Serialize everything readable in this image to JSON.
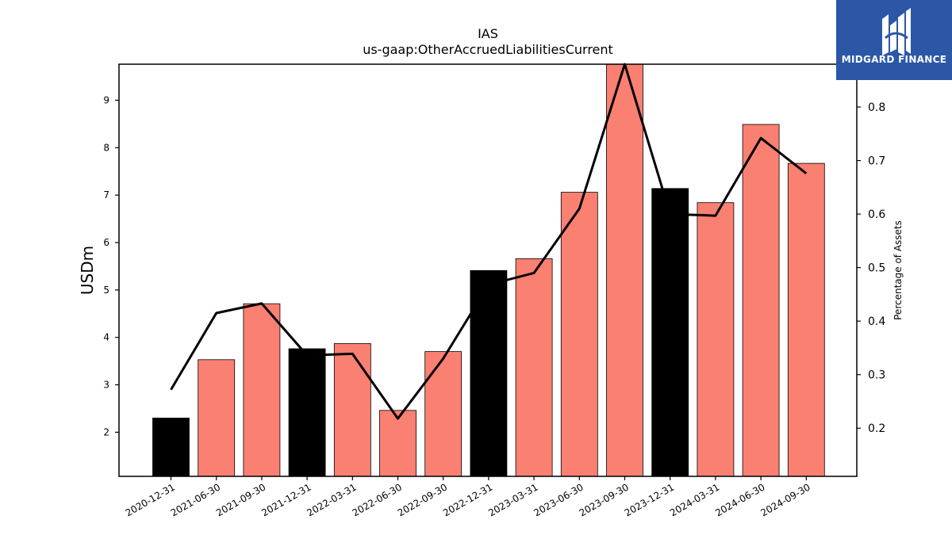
{
  "chart_data": {
    "type": "bar",
    "title": "IAS",
    "subtitle": "us-gaap:OtherAccruedLiabilitiesCurrent",
    "ylabel": "USDm",
    "y2label": "Percentage of Assets",
    "categories": [
      "2020-12-31",
      "2021-06-30",
      "2021-09-30",
      "2021-12-31",
      "2022-03-31",
      "2022-06-30",
      "2022-09-30",
      "2022-12-31",
      "2023-03-31",
      "2023-06-30",
      "2023-09-30",
      "2023-12-31",
      "2024-03-31",
      "2024-06-30",
      "2024-09-30"
    ],
    "values": [
      2.3,
      3.53,
      4.71,
      3.76,
      3.87,
      2.46,
      3.7,
      5.41,
      5.66,
      7.06,
      9.76,
      7.14,
      6.84,
      8.49,
      7.67
    ],
    "bar_colors": [
      "#000000",
      "#fa8072",
      "#fa8072",
      "#000000",
      "#fa8072",
      "#fa8072",
      "#fa8072",
      "#000000",
      "#fa8072",
      "#fa8072",
      "#fa8072",
      "#000000",
      "#fa8072",
      "#fa8072",
      "#fa8072"
    ],
    "line": {
      "name": "Percentage of Assets",
      "values": [
        0.272,
        0.415,
        0.433,
        0.336,
        0.339,
        0.218,
        0.33,
        0.468,
        0.49,
        0.61,
        0.88,
        0.6,
        0.597,
        0.742,
        0.676
      ],
      "color": "#000000"
    },
    "ylim": [
      1.07,
      9.76
    ],
    "y2lim": [
      0.11,
      0.88
    ],
    "yticks": [
      2,
      3,
      4,
      5,
      6,
      7,
      8,
      9
    ],
    "y2ticks": [
      0.2,
      0.3,
      0.4,
      0.5,
      0.6,
      0.7,
      0.8
    ]
  },
  "logo": {
    "name": "MIDGARD FINANCE",
    "bg_color": "#2b57a6"
  }
}
